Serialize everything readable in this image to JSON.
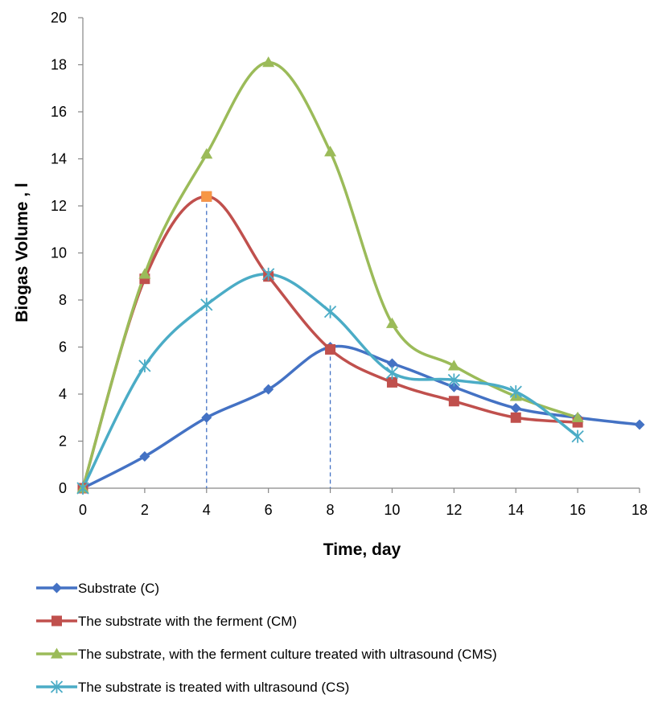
{
  "chart_data": {
    "type": "line",
    "title": "",
    "xlabel": "Time, day",
    "ylabel": "Biogas Volume , l",
    "xlim": [
      0,
      18
    ],
    "ylim": [
      0,
      20
    ],
    "x_ticks": [
      0,
      2,
      4,
      6,
      8,
      10,
      12,
      14,
      16,
      18
    ],
    "y_ticks": [
      0,
      2,
      4,
      6,
      8,
      10,
      12,
      14,
      16,
      18,
      20
    ],
    "grid": false,
    "smoothed": true,
    "legend_position": "bottom",
    "series": [
      {
        "name": "Substrate (C)",
        "color": "#4472C4",
        "marker": "diamond",
        "x": [
          0,
          2,
          4,
          6,
          8,
          10,
          12,
          14,
          16,
          18
        ],
        "values": [
          0,
          1.35,
          3.0,
          4.2,
          6.0,
          5.3,
          4.3,
          3.4,
          3.0,
          2.7
        ]
      },
      {
        "name": "The substrate with the ferment (CM)",
        "color": "#C0504D",
        "marker": "square",
        "x": [
          0,
          2,
          4,
          6,
          8,
          10,
          12,
          14,
          16
        ],
        "values": [
          0,
          8.9,
          12.4,
          9.0,
          5.9,
          4.5,
          3.7,
          3.0,
          2.8
        ]
      },
      {
        "name": "The substrate, with the ferment culture treated with ultrasound (CMS)",
        "color": "#9BBB59",
        "marker": "triangle",
        "x": [
          0,
          2,
          4,
          6,
          8,
          10,
          12,
          14,
          16
        ],
        "values": [
          0,
          9.1,
          14.2,
          18.1,
          14.3,
          7.0,
          5.2,
          3.9,
          3.0
        ]
      },
      {
        "name": "The substrate is treated with ultrasound (CS)",
        "color": "#4BACC6",
        "marker": "asterisk",
        "x": [
          0,
          2,
          4,
          6,
          8,
          10,
          12,
          14,
          16
        ],
        "values": [
          0,
          5.2,
          7.8,
          9.1,
          7.5,
          4.9,
          4.6,
          4.1,
          2.2
        ]
      }
    ],
    "reference_lines": [
      {
        "x": 4,
        "y": 12.4,
        "color": "#4472C4",
        "style": "dashed"
      },
      {
        "x": 8,
        "y": 5.9,
        "color": "#4472C4",
        "style": "dashed"
      }
    ],
    "highlight_point": {
      "x": 4,
      "y": 12.4,
      "color": "#F79646"
    }
  }
}
